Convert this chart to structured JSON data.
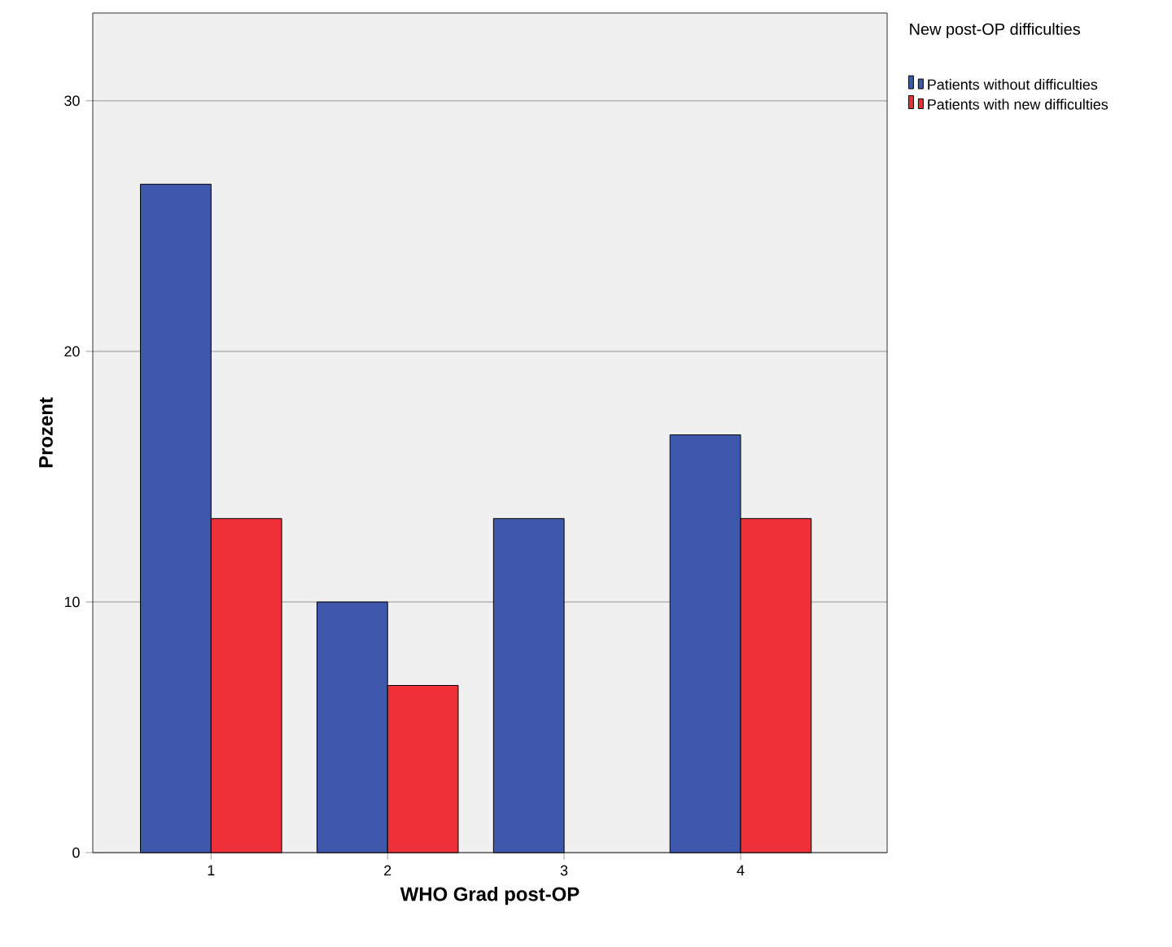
{
  "chart_data": {
    "type": "bar",
    "xlabel": "WHO Grad post-OP",
    "ylabel": "Prozent",
    "legend_title": "New post-OP difficulties",
    "categories": [
      "1",
      "2",
      "3",
      "4"
    ],
    "series": [
      {
        "name": "Patients without difficulties",
        "color": "#3e58ac",
        "values": [
          26.67,
          10,
          13.33,
          16.67
        ]
      },
      {
        "name": "Patients with new difficulties",
        "color": "#ef3038",
        "values": [
          13.33,
          6.67,
          null,
          13.33
        ]
      }
    ],
    "ylim": [
      0,
      33.5
    ],
    "yticks": [
      0,
      10,
      20,
      30
    ],
    "grid": "y",
    "legend": "top right"
  }
}
